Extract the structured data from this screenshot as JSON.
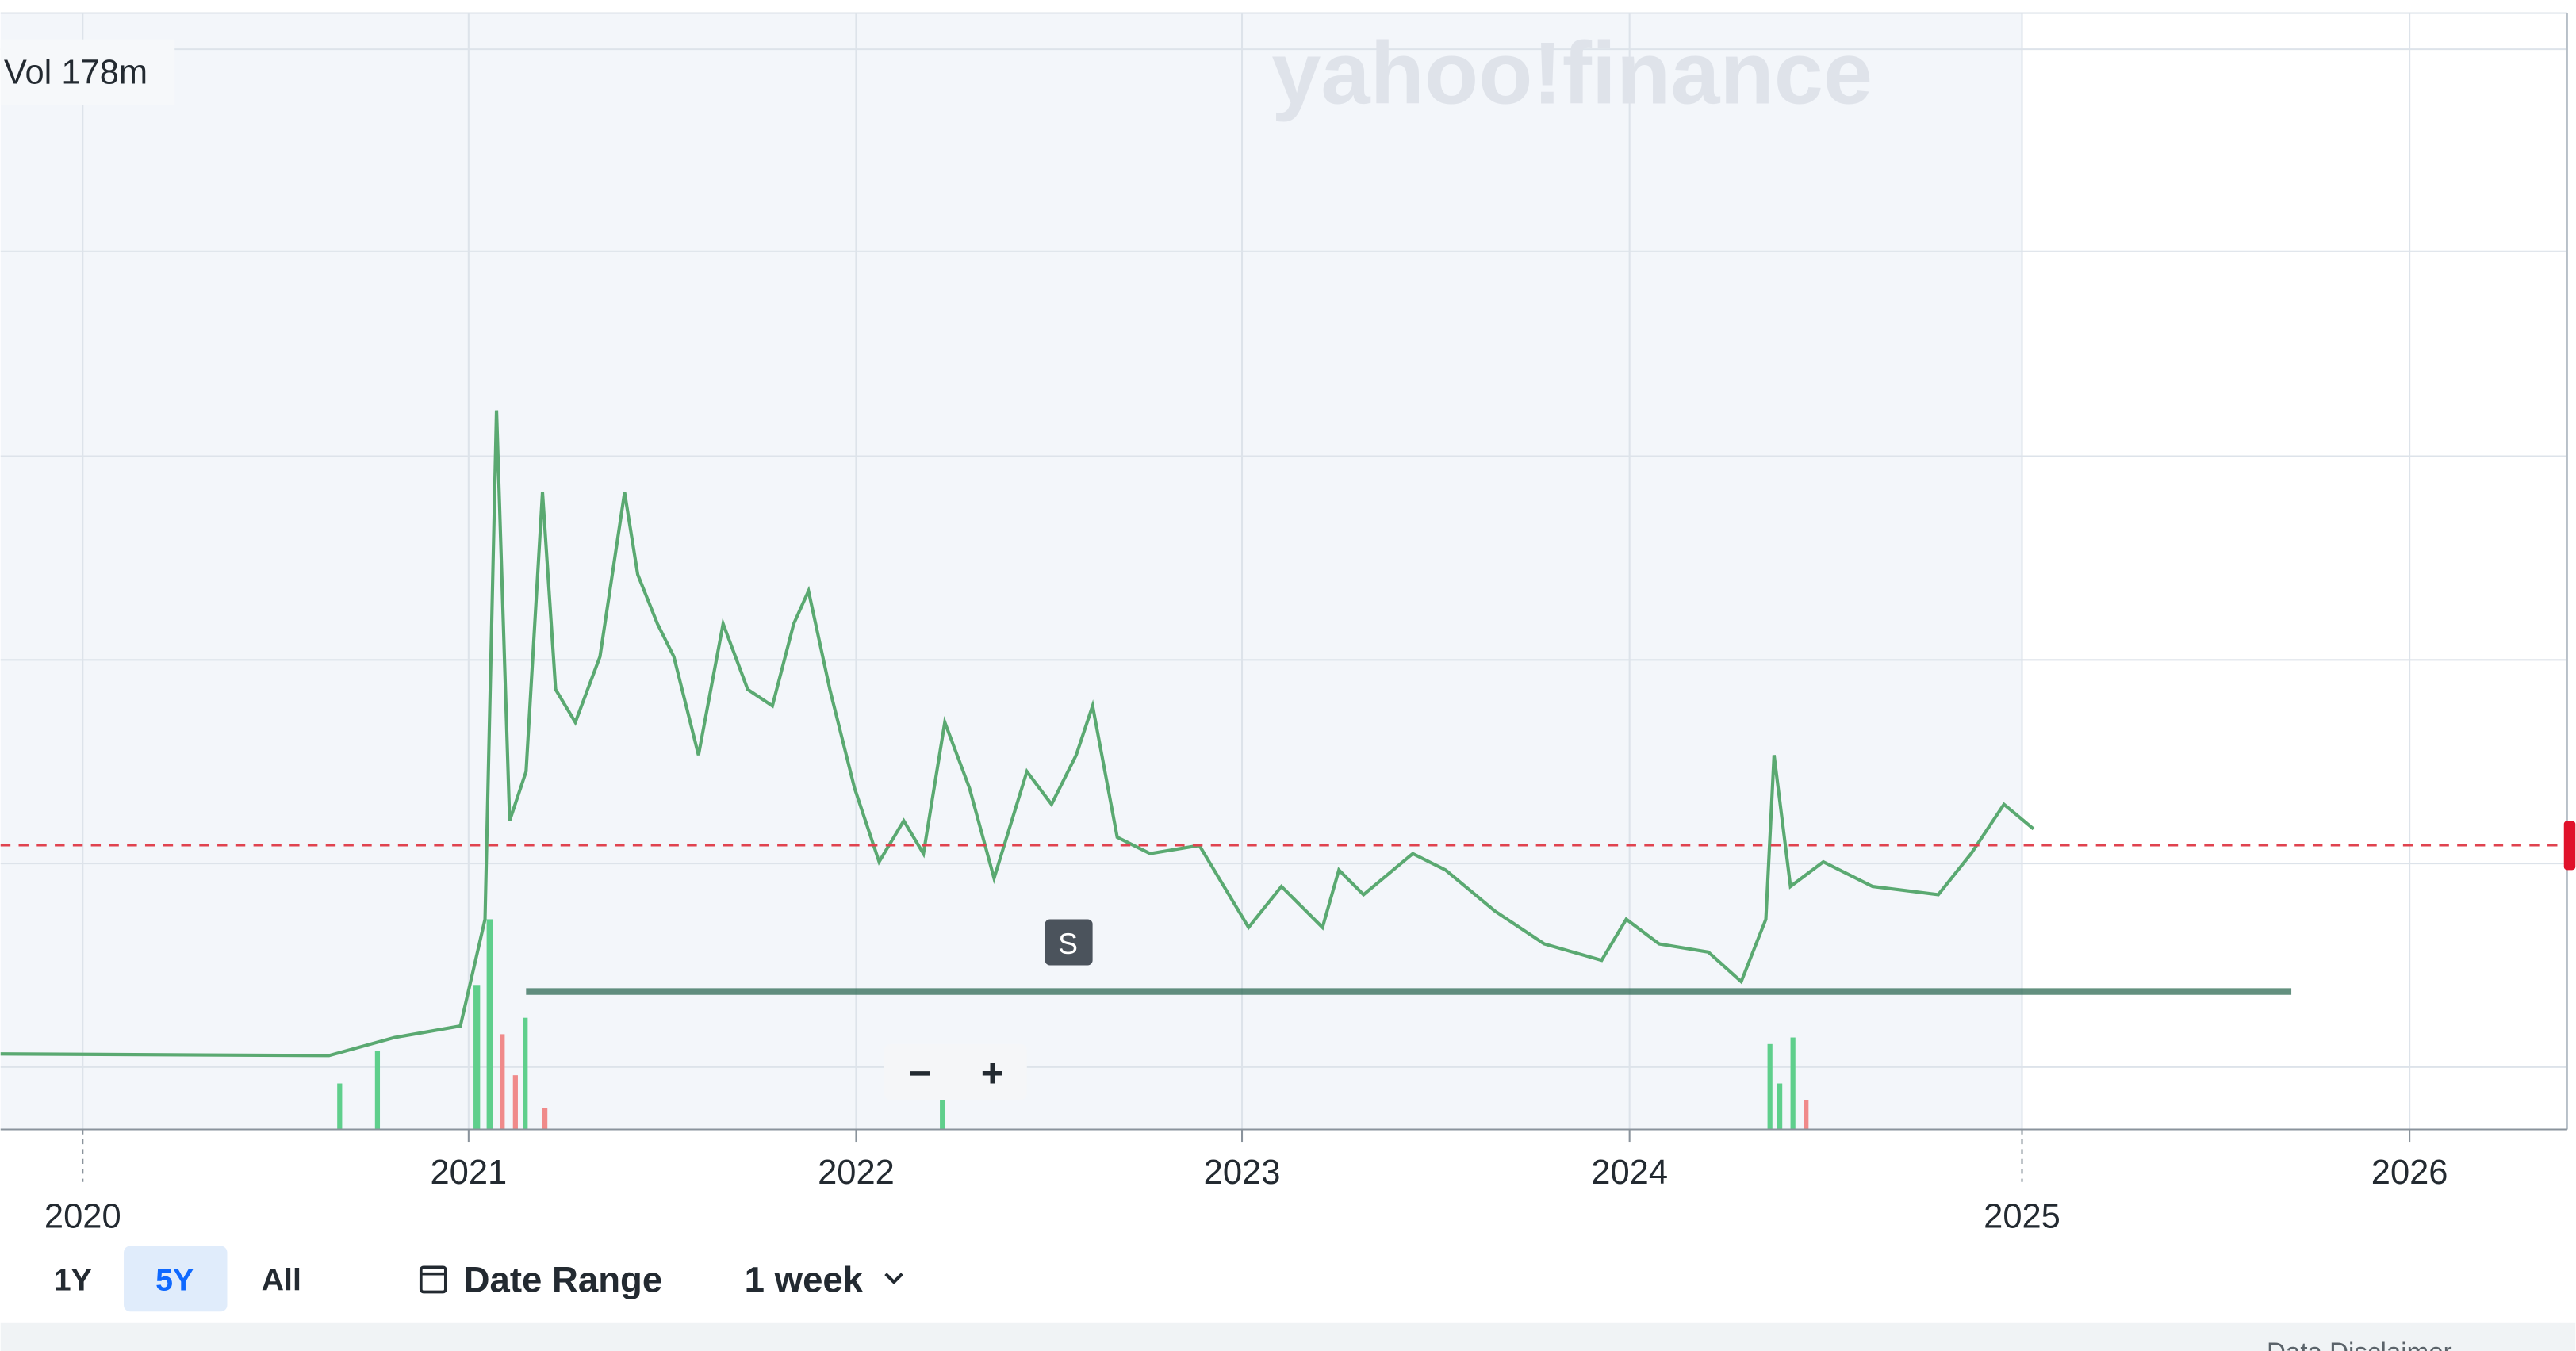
{
  "volume_label": "Vol 178m",
  "watermark": "yahoo!finance",
  "x_axis": [
    "2020",
    "2021",
    "2022",
    "2023",
    "2024",
    "2025",
    "2026"
  ],
  "marker": "S",
  "zoom": [
    "−",
    "+"
  ],
  "range_buttons": [
    "1Y",
    "5Y",
    "All"
  ],
  "date_range": "Date Range",
  "interval": "1 week",
  "footer": "Data Disclaimer"
}
